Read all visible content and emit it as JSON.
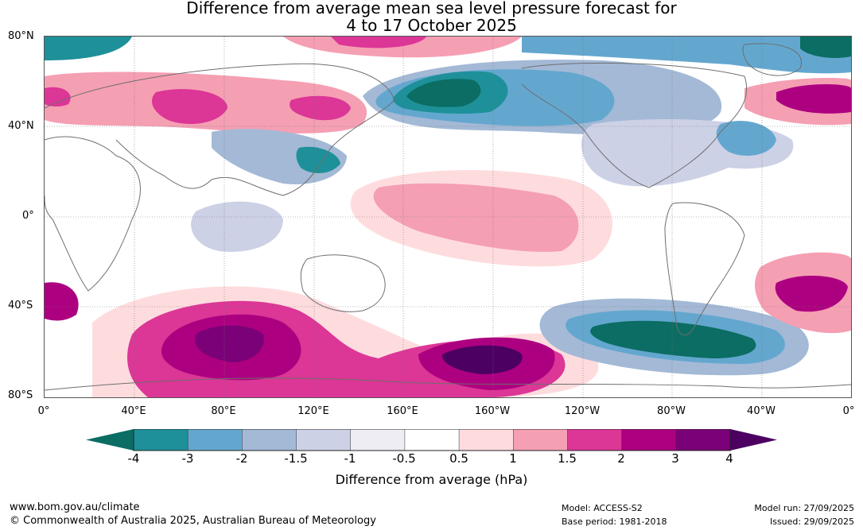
{
  "title": {
    "line1": "Difference from average mean sea level pressure forecast for",
    "line2": "4 to 17 October 2025"
  },
  "lat_labels": [
    "80°N",
    "40°N",
    "0°",
    "40°S",
    "80°S"
  ],
  "lon_labels": [
    "0°",
    "40°E",
    "80°E",
    "120°E",
    "160°E",
    "160°W",
    "120°W",
    "80°W",
    "40°W",
    "0°"
  ],
  "colorbar": {
    "label": "Difference from average (hPa)",
    "ticks": [
      "-4",
      "-3",
      "-2",
      "-1.5",
      "-1",
      "-0.5",
      "0.5",
      "1",
      "1.5",
      "2",
      "3",
      "4"
    ],
    "colors": [
      "#0b6d63",
      "#1e9099",
      "#63a7cf",
      "#a3b9d6",
      "#cdd1e6",
      "#efedf4",
      "#ffffff",
      "#fedcde",
      "#f59fb3",
      "#dc3696",
      "#ad0080",
      "#7a0177",
      "#4b0062"
    ]
  },
  "footer": {
    "url": "www.bom.gov.au/climate",
    "copyright": "© Commonwealth of Australia 2025, Australian Bureau of Meteorology",
    "model": "Model: ACCESS-S2",
    "base_period": "Base period: 1981-2018",
    "model_run": "Model run: 27/09/2025",
    "issued": "Issued: 29/09/2025"
  },
  "anomaly_regions": [
    {
      "name": "north-pacific-low",
      "level": -4
    },
    {
      "name": "south-pacific-high",
      "level": 4
    },
    {
      "name": "southern-indian-ocean-high",
      "level": 4
    },
    {
      "name": "drake-passage-low",
      "level": -4
    },
    {
      "name": "north-atlantic-high",
      "level": 3
    },
    {
      "name": "south-atlantic-high",
      "level": 3
    },
    {
      "name": "east-asia-low",
      "level": -3
    },
    {
      "name": "tropical-pacific-high",
      "level": 1
    }
  ]
}
